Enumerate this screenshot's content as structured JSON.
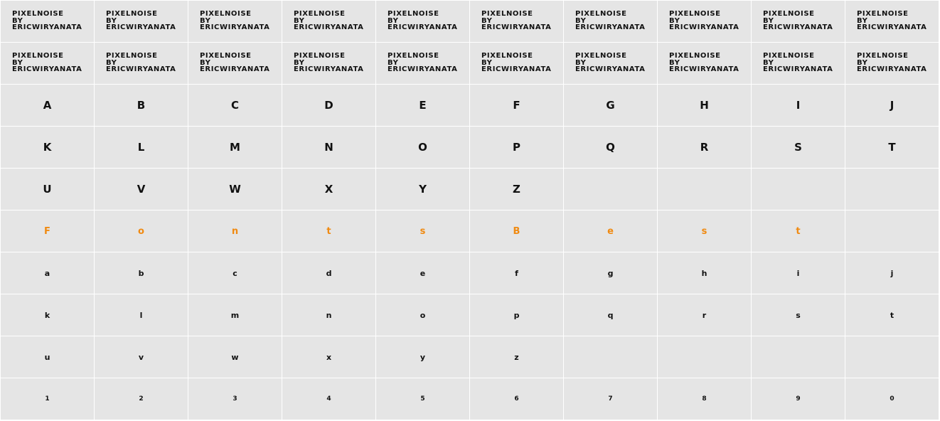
{
  "credit": {
    "line1": "PIXELNOISE",
    "line2": "BY",
    "line3": "ERICWIRYANATA"
  },
  "uppercase": [
    "A",
    "B",
    "C",
    "D",
    "E",
    "F",
    "G",
    "H",
    "I",
    "J",
    "K",
    "L",
    "M",
    "N",
    "O",
    "P",
    "Q",
    "R",
    "S",
    "T",
    "U",
    "V",
    "W",
    "X",
    "Y",
    "Z"
  ],
  "font_name_letters": [
    "F",
    "o",
    "n",
    "t",
    "s",
    "B",
    "e",
    "s",
    "t"
  ],
  "lowercase": [
    "a",
    "b",
    "c",
    "d",
    "e",
    "f",
    "g",
    "h",
    "i",
    "j",
    "k",
    "l",
    "m",
    "n",
    "o",
    "p",
    "q",
    "r",
    "s",
    "t",
    "u",
    "v",
    "w",
    "x",
    "y",
    "z"
  ],
  "digits": [
    "1",
    "2",
    "3",
    "4",
    "5",
    "6",
    "7",
    "8",
    "9",
    "0"
  ],
  "colors": {
    "cell_background": "#e5e5e5",
    "grid_lines": "#ffffff",
    "glyph": "#111111",
    "accent": "#f08a11"
  }
}
